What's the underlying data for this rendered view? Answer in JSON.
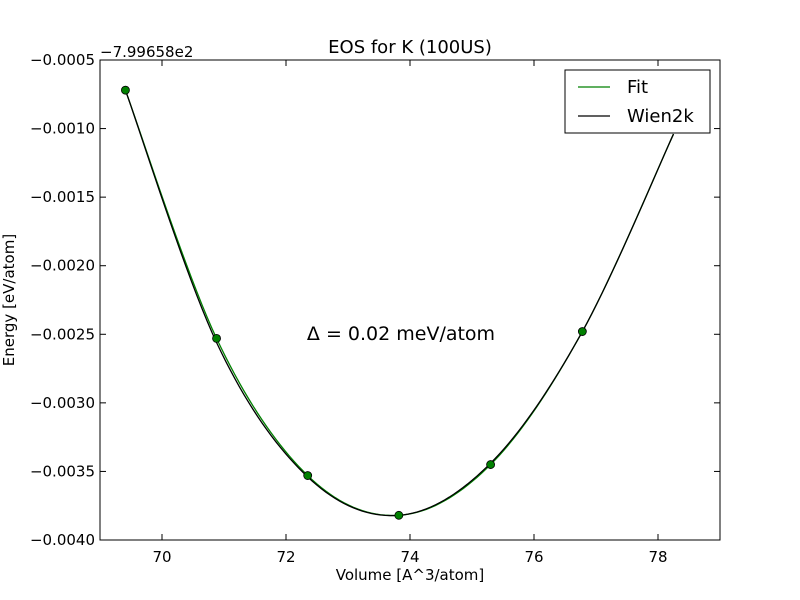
{
  "chart_data": {
    "type": "line",
    "title": "EOS for K (100US)",
    "xlabel": "Volume [A^3/atom]",
    "ylabel": "Energy [eV/atom]",
    "y_offset_label": "−7.99658e2",
    "annotation": "Δ = 0.02 meV/atom",
    "xlim": [
      69,
      79
    ],
    "ylim": [
      -0.004,
      -0.0005
    ],
    "x_ticks": [
      70,
      72,
      74,
      76,
      78
    ],
    "x_tick_labels": [
      "70",
      "72",
      "74",
      "76",
      "78"
    ],
    "y_ticks": [
      -0.004,
      -0.0035,
      -0.003,
      -0.0025,
      -0.002,
      -0.0015,
      -0.001,
      -0.0005
    ],
    "y_tick_labels": [
      "−0.0040",
      "−0.0035",
      "−0.0030",
      "−0.0025",
      "−0.0020",
      "−0.0015",
      "−0.0010",
      "−0.0005"
    ],
    "grid": false,
    "legend_position": "top-right",
    "points": {
      "x": [
        69.41,
        70.88,
        72.35,
        73.82,
        75.3,
        76.78
      ],
      "y": [
        -0.00072,
        -0.00253,
        -0.00353,
        -0.00382,
        -0.00345,
        -0.00248
      ]
    },
    "series": [
      {
        "name": "Fit",
        "color": "#008000",
        "x": [
          69.41,
          70.88,
          72.35,
          73.82,
          75.3,
          76.78,
          78.25
        ],
        "y": [
          -0.00072,
          -0.00253,
          -0.00353,
          -0.00382,
          -0.00345,
          -0.00248,
          -0.00104
        ]
      },
      {
        "name": "Wien2k",
        "color": "#000000",
        "x": [
          69.41,
          70.88,
          72.35,
          73.82,
          75.3,
          76.78,
          78.25
        ],
        "y": [
          -0.00072,
          -0.00256,
          -0.00354,
          -0.00382,
          -0.00344,
          -0.00248,
          -0.00104
        ]
      }
    ],
    "marker_color": "#008000"
  }
}
